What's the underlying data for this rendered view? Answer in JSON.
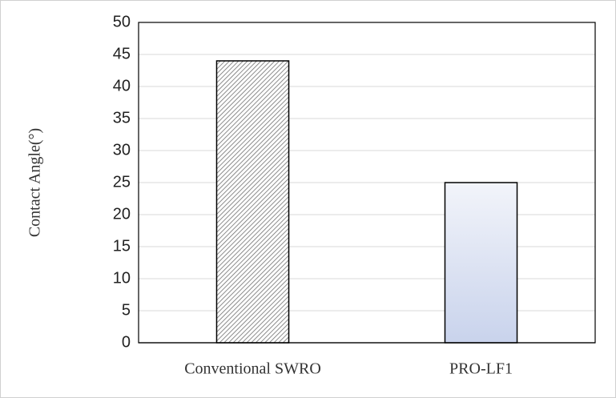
{
  "chart_data": {
    "type": "bar",
    "y_label": "Contact Angle(°)",
    "categories": [
      "Conventional SWRO",
      "PRO-LF1"
    ],
    "values": [
      44,
      25
    ],
    "colors": [
      "#6f6f6f",
      "#c9d3ec"
    ],
    "fill_styles": [
      "hatch",
      "gradient"
    ],
    "ylim": [
      0,
      50
    ],
    "yticks": [
      0,
      5,
      10,
      15,
      20,
      25,
      30,
      35,
      40,
      45,
      50
    ],
    "grid": true
  }
}
